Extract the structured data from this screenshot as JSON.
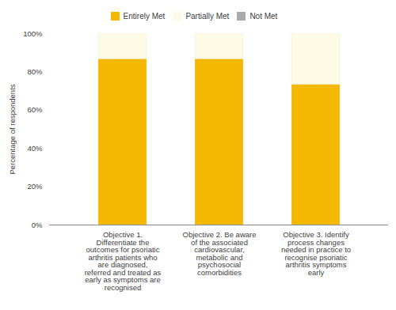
{
  "chart_data": {
    "type": "bar",
    "stacked": true,
    "categories": [
      "Objective 1.\nDifferentiate the\noutcomes for psoriatic\narthritis patients who\nare diagnosed,\nreferred and treated as\nearly as symptoms are\nrecognised",
      "Objective 2. Be aware\nof the associated\ncardiovascular,\nmetabolic and\npsychosocial\ncomorbidities",
      "Objective 3. Identify\nprocess changes\nneeded in practice to\nrecognise psoriatic\narthritis symptoms\nearly"
    ],
    "series": [
      {
        "name": "Entirely Met",
        "color": "#F5B800",
        "values": [
          86.67,
          86.67,
          73.33
        ]
      },
      {
        "name": "Partially Met",
        "color": "#FDFAE6",
        "values": [
          13.33,
          13.33,
          26.67
        ]
      },
      {
        "name": "Not Met",
        "color": "#AAAAAA",
        "values": [
          0.0,
          0.0,
          0.0
        ]
      }
    ],
    "ylabel": "Percentage of respondents",
    "ylim": [
      0,
      100
    ],
    "yticks": [
      {
        "value": 0,
        "label": "0%"
      },
      {
        "value": 20,
        "label": "20%"
      },
      {
        "value": 40,
        "label": "40%"
      },
      {
        "value": 60,
        "label": "60%"
      },
      {
        "value": 80,
        "label": "80%"
      },
      {
        "value": 100,
        "label": "100%"
      }
    ],
    "grid": false,
    "legend": "top"
  }
}
